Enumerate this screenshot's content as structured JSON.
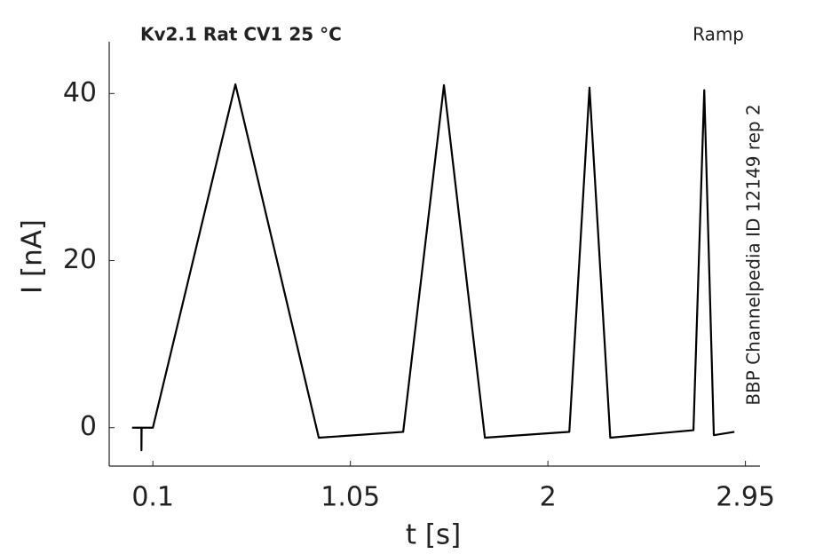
{
  "chart_data": {
    "type": "line",
    "title": "Kv2.1  Rat  CV1  25 °C",
    "subtitle": "Ramp",
    "annotation": "BBP Channelpedia ID 12149 rep 2",
    "x_label": "t [s]",
    "y_label": "I [nA]",
    "x": [
      0.0,
      0.045,
      0.045,
      0.046,
      0.1,
      0.497,
      0.898,
      1.304,
      1.5,
      1.697,
      2.103,
      2.2,
      2.3,
      2.7,
      2.752,
      2.798,
      2.897
    ],
    "values": [
      0,
      0,
      -2.7,
      0,
      0,
      41.1,
      -1.2,
      -0.5,
      41.0,
      -1.2,
      -0.5,
      40.7,
      -1.2,
      -0.3,
      40.4,
      -0.9,
      -0.5
    ],
    "color": "#000000",
    "xlim": [
      -0.11,
      3.02
    ],
    "ylim": [
      -4.6,
      46.2
    ],
    "xticks": [
      0.1,
      1.05,
      2,
      2.95
    ],
    "yticks": [
      0,
      20,
      40
    ]
  }
}
